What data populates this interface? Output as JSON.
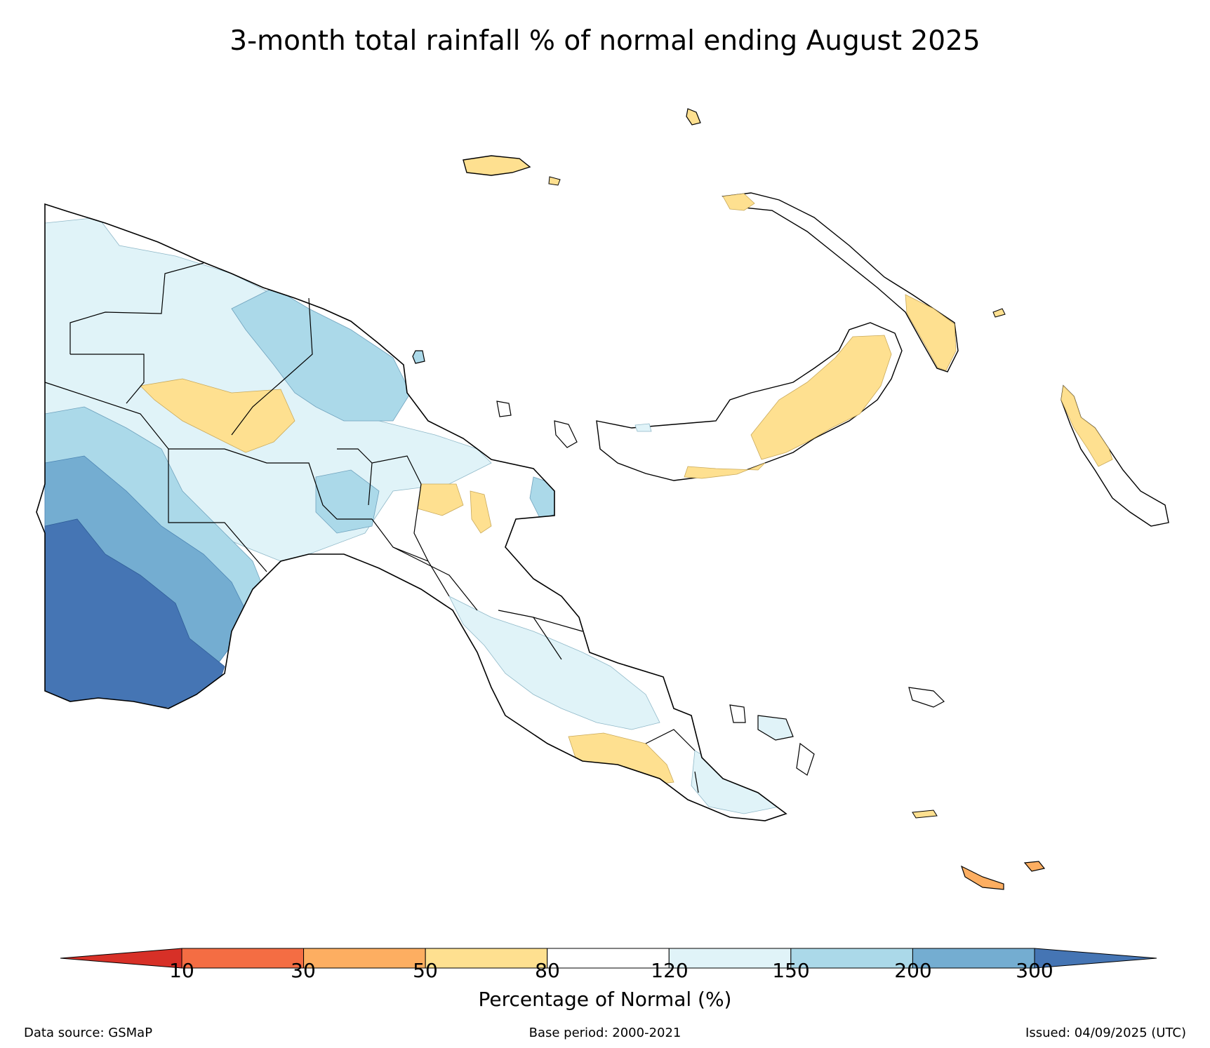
{
  "title": "3-month total rainfall % of normal ending August 2025",
  "colorbar": {
    "label": "Percentage of Normal (%)",
    "ticks": [
      "10",
      "30",
      "50",
      "80",
      "120",
      "150",
      "200",
      "300"
    ],
    "bins": [
      {
        "range": "<10",
        "color": "#d73027"
      },
      {
        "range": "10-30",
        "color": "#f46d43"
      },
      {
        "range": "30-50",
        "color": "#fdae61"
      },
      {
        "range": "50-80",
        "color": "#fee090"
      },
      {
        "range": "80-120",
        "color": "#ffffff"
      },
      {
        "range": "120-150",
        "color": "#e0f3f8"
      },
      {
        "range": "150-200",
        "color": "#abd9e9"
      },
      {
        "range": "200-300",
        "color": "#74add1"
      },
      {
        "range": ">300",
        "color": "#4575b4"
      }
    ]
  },
  "footer": {
    "source": "Data source: GSMaP",
    "base_period": "Base period: 2000-2021",
    "issued": "Issued: 04/09/2025 (UTC)"
  }
}
